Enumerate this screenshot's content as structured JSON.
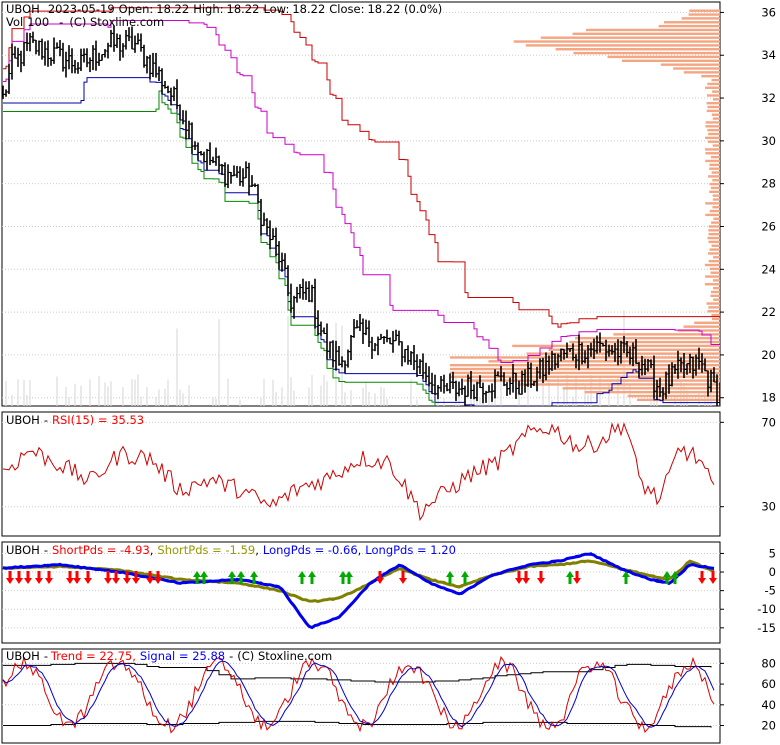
{
  "chart_data": [
    {
      "type": "candlestick",
      "header": {
        "symbol": "UBOH",
        "date": "2023-05-19",
        "open_label": "Open:",
        "open": "18.22",
        "high_label": "High:",
        "high": "18.22",
        "low_label": "Low:",
        "low": "18.22",
        "close_label": "Close:",
        "close": "18.22 (0.0%)",
        "vol_label": "Vol",
        "vol": "100",
        "credit": "(C) Stoxline.com"
      },
      "y_ticks": [
        18,
        20,
        22,
        24,
        26,
        28,
        30,
        32,
        34,
        36
      ],
      "ylim": [
        17.8,
        36.3
      ],
      "price_keypoints": [
        [
          0,
          31.5
        ],
        [
          12,
          33.5
        ],
        [
          30,
          34.5
        ],
        [
          55,
          34
        ],
        [
          80,
          33.5
        ],
        [
          110,
          34.5
        ],
        [
          135,
          34.5
        ],
        [
          160,
          33
        ],
        [
          180,
          31.5
        ],
        [
          200,
          29.5
        ],
        [
          225,
          28.5
        ],
        [
          250,
          28.2
        ],
        [
          265,
          26
        ],
        [
          280,
          24.5
        ],
        [
          290,
          22.5
        ],
        [
          310,
          23
        ],
        [
          325,
          20.5
        ],
        [
          340,
          19.6
        ],
        [
          355,
          21
        ],
        [
          370,
          20.8
        ],
        [
          400,
          20.4
        ],
        [
          420,
          19.5
        ],
        [
          440,
          18.3
        ],
        [
          470,
          18.5
        ],
        [
          500,
          18.8
        ],
        [
          520,
          18.6
        ],
        [
          540,
          19.2
        ],
        [
          560,
          20
        ],
        [
          600,
          20.4
        ],
        [
          640,
          19.8
        ],
        [
          660,
          18.4
        ],
        [
          680,
          19.3
        ],
        [
          700,
          19.6
        ],
        [
          716,
          18.3
        ]
      ],
      "volume_profile_peaks": [
        [
          34.2,
          50
        ],
        [
          34.8,
          60
        ],
        [
          20.4,
          75
        ],
        [
          19.6,
          85
        ],
        [
          19.0,
          90
        ],
        [
          18.4,
          40
        ]
      ]
    },
    {
      "type": "line",
      "header": {
        "symbol": "UBOH",
        "rsi_label": "RSI(15) = 35.53"
      },
      "y_ticks": [
        30,
        70
      ],
      "ylim": [
        18,
        73
      ],
      "rsi_keypoints": [
        [
          0,
          45
        ],
        [
          30,
          57
        ],
        [
          60,
          50
        ],
        [
          90,
          42
        ],
        [
          120,
          55
        ],
        [
          150,
          53
        ],
        [
          180,
          38
        ],
        [
          210,
          43
        ],
        [
          240,
          38
        ],
        [
          270,
          30
        ],
        [
          300,
          39
        ],
        [
          330,
          44
        ],
        [
          360,
          53
        ],
        [
          390,
          51
        ],
        [
          420,
          28
        ],
        [
          440,
          35
        ],
        [
          470,
          45
        ],
        [
          500,
          52
        ],
        [
          530,
          65
        ],
        [
          550,
          68
        ],
        [
          580,
          58
        ],
        [
          600,
          61
        ],
        [
          625,
          70
        ],
        [
          640,
          42
        ],
        [
          660,
          33
        ],
        [
          680,
          58
        ],
        [
          700,
          52
        ],
        [
          716,
          36
        ]
      ]
    },
    {
      "type": "line",
      "header": {
        "symbol": "UBOH",
        "items": [
          "ShortPds = -4.93",
          "ShortPds = -1.59",
          "LongPds = -0.66",
          "LongPds = 1.20"
        ],
        "colors": [
          "#ff0000",
          "#999900",
          "#0000ff",
          "#0000ff"
        ]
      },
      "y_ticks": [
        5,
        0,
        -5,
        -10,
        -15
      ],
      "ylim": [
        -18,
        7
      ],
      "blue_keypoints": [
        [
          0,
          1
        ],
        [
          60,
          2
        ],
        [
          120,
          0
        ],
        [
          180,
          -3
        ],
        [
          240,
          -2
        ],
        [
          280,
          -4
        ],
        [
          310,
          -15
        ],
        [
          340,
          -12
        ],
        [
          370,
          -3
        ],
        [
          400,
          2
        ],
        [
          430,
          -3
        ],
        [
          460,
          -6
        ],
        [
          490,
          -1
        ],
        [
          530,
          2
        ],
        [
          560,
          3
        ],
        [
          590,
          5
        ],
        [
          620,
          1
        ],
        [
          650,
          -2
        ],
        [
          670,
          -3
        ],
        [
          690,
          2
        ],
        [
          716,
          1
        ]
      ],
      "olive_keypoints": [
        [
          0,
          1
        ],
        [
          60,
          1.5
        ],
        [
          120,
          0.5
        ],
        [
          180,
          -2
        ],
        [
          240,
          -3
        ],
        [
          280,
          -5
        ],
        [
          310,
          -8
        ],
        [
          340,
          -7
        ],
        [
          370,
          -3
        ],
        [
          400,
          1
        ],
        [
          430,
          -2
        ],
        [
          460,
          -4
        ],
        [
          490,
          -1
        ],
        [
          530,
          1.5
        ],
        [
          560,
          2
        ],
        [
          590,
          3
        ],
        [
          620,
          1
        ],
        [
          650,
          -1
        ],
        [
          670,
          -2
        ],
        [
          690,
          3
        ],
        [
          716,
          0
        ]
      ],
      "up_arrows_x": [
        197,
        204,
        232,
        241,
        254,
        302,
        312,
        343,
        349,
        450,
        465,
        570,
        626,
        667,
        675
      ],
      "down_arrows_x": [
        10,
        19,
        28,
        39,
        49,
        70,
        77,
        88,
        108,
        116,
        127,
        136,
        150,
        158,
        380,
        403,
        519,
        526,
        541,
        577,
        702,
        713
      ]
    },
    {
      "type": "line",
      "header": {
        "symbol": "UBOH",
        "trend_label": "Trend = 22.75,",
        "signal_label": "Signal = 25.88",
        "credit": "(C) Stoxline.com"
      },
      "y_ticks": [
        80,
        60,
        40,
        20
      ],
      "ylim": [
        7,
        90
      ],
      "stoch_upper_keypoints": [
        [
          0,
          78
        ],
        [
          40,
          78
        ],
        [
          80,
          80
        ],
        [
          120,
          80
        ],
        [
          160,
          76
        ],
        [
          200,
          76
        ],
        [
          230,
          65
        ],
        [
          260,
          66
        ],
        [
          300,
          65
        ],
        [
          340,
          64
        ],
        [
          380,
          62
        ],
        [
          420,
          62
        ],
        [
          460,
          64
        ],
        [
          500,
          68
        ],
        [
          540,
          72
        ],
        [
          580,
          72
        ],
        [
          620,
          79
        ],
        [
          660,
          78
        ],
        [
          716,
          76
        ]
      ],
      "stoch_lower_keypoints": [
        [
          0,
          20
        ],
        [
          40,
          20
        ],
        [
          80,
          22
        ],
        [
          120,
          22
        ],
        [
          160,
          21
        ],
        [
          200,
          22
        ],
        [
          230,
          23
        ],
        [
          260,
          24
        ],
        [
          300,
          24
        ],
        [
          340,
          22
        ],
        [
          380,
          21
        ],
        [
          420,
          21
        ],
        [
          460,
          22
        ],
        [
          500,
          23
        ],
        [
          540,
          23
        ],
        [
          580,
          22
        ],
        [
          620,
          22
        ],
        [
          660,
          20
        ],
        [
          716,
          18
        ]
      ]
    }
  ]
}
